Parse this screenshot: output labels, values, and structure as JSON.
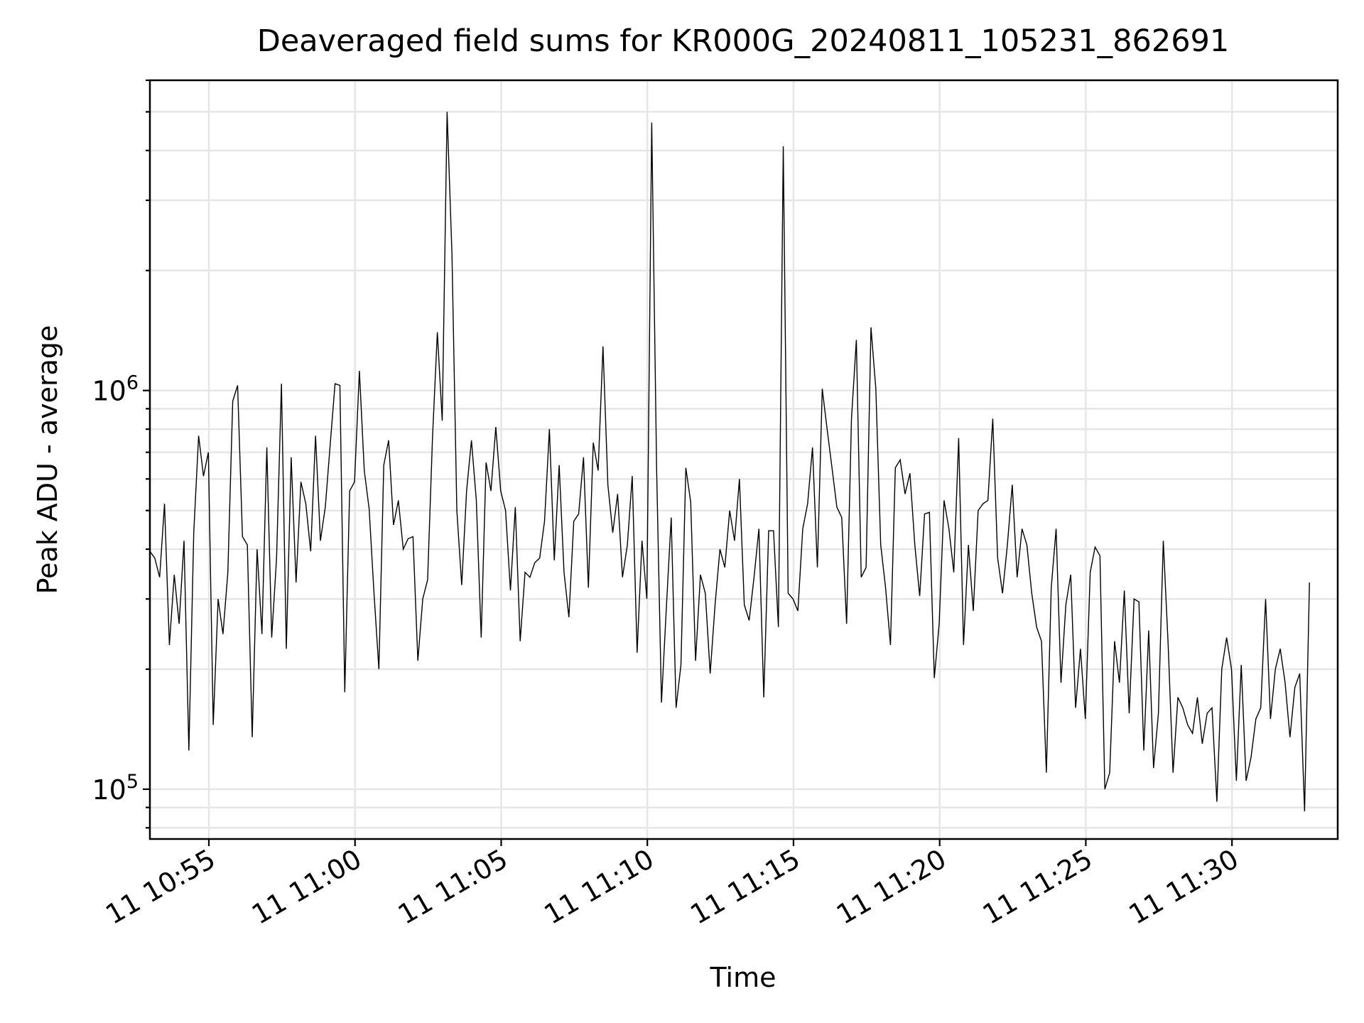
{
  "chart_data": {
    "type": "line",
    "title": "Deaveraged field sums for KR000G_20240811_105231_862691",
    "xlabel": "Time",
    "ylabel": "Peak ADU - average",
    "yscale": "log",
    "grid": true,
    "ylim": [
      75000,
      6000000
    ],
    "xlim": [
      "2024-08-11 10:52:59",
      "2024-08-11 11:33:37"
    ],
    "x_start": "2024-08-11 10:52:59",
    "x_step_seconds": 10,
    "xticks": [
      {
        "time": "2024-08-11 10:55:00",
        "label": "11 10:55"
      },
      {
        "time": "2024-08-11 11:00:00",
        "label": "11 11:00"
      },
      {
        "time": "2024-08-11 11:05:00",
        "label": "11 11:05"
      },
      {
        "time": "2024-08-11 11:10:00",
        "label": "11 11:10"
      },
      {
        "time": "2024-08-11 11:15:00",
        "label": "11 11:15"
      },
      {
        "time": "2024-08-11 11:20:00",
        "label": "11 11:20"
      },
      {
        "time": "2024-08-11 11:25:00",
        "label": "11 11:25"
      },
      {
        "time": "2024-08-11 11:30:00",
        "label": "11 11:30"
      }
    ],
    "yticks": [
      {
        "value": 100000,
        "base": "10",
        "exp": "5"
      },
      {
        "value": 1000000,
        "base": "10",
        "exp": "6"
      }
    ],
    "series": [
      {
        "color": "#000000",
        "values": [
          395000,
          380000,
          340000,
          520000,
          230000,
          345000,
          260000,
          420000,
          125000,
          440000,
          770000,
          610000,
          700000,
          145000,
          300000,
          245000,
          350000,
          940000,
          1030000,
          430000,
          410000,
          135000,
          400000,
          245000,
          720000,
          240000,
          380000,
          1040000,
          225000,
          680000,
          330000,
          590000,
          520000,
          395000,
          770000,
          420000,
          510000,
          730000,
          1040000,
          1030000,
          175000,
          560000,
          590000,
          1120000,
          630000,
          505000,
          310000,
          200000,
          650000,
          750000,
          460000,
          530000,
          400000,
          425000,
          430000,
          210000,
          300000,
          335000,
          760000,
          1400000,
          840000,
          5000000,
          2200000,
          500000,
          325000,
          560000,
          750000,
          530000,
          240000,
          660000,
          560000,
          810000,
          560000,
          500000,
          315000,
          510000,
          235000,
          350000,
          340000,
          370000,
          380000,
          470000,
          800000,
          375000,
          650000,
          350000,
          270000,
          470000,
          490000,
          680000,
          320000,
          740000,
          630000,
          1290000,
          580000,
          440000,
          550000,
          340000,
          410000,
          610000,
          220000,
          420000,
          300000,
          4700000,
          640000,
          165000,
          285000,
          480000,
          160000,
          205000,
          640000,
          525000,
          210000,
          345000,
          310000,
          195000,
          290000,
          400000,
          360000,
          500000,
          420000,
          600000,
          290000,
          265000,
          340000,
          450000,
          170000,
          445000,
          445000,
          255000,
          4100000,
          310000,
          300000,
          280000,
          450000,
          520000,
          720000,
          360000,
          1010000,
          800000,
          640000,
          510000,
          480000,
          260000,
          850000,
          1340000,
          340000,
          360000,
          1440000,
          1010000,
          410000,
          320000,
          230000,
          640000,
          670000,
          550000,
          620000,
          410000,
          305000,
          490000,
          495000,
          190000,
          260000,
          530000,
          450000,
          350000,
          760000,
          230000,
          410000,
          280000,
          500000,
          520000,
          530000,
          850000,
          380000,
          310000,
          410000,
          580000,
          340000,
          450000,
          410000,
          310000,
          255000,
          235000,
          110000,
          320000,
          450000,
          185000,
          290000,
          345000,
          160000,
          225000,
          150000,
          350000,
          405000,
          385000,
          100000,
          110000,
          235000,
          185000,
          315000,
          155000,
          300000,
          295000,
          125000,
          250000,
          113000,
          155000,
          420000,
          230000,
          110000,
          170000,
          160000,
          145000,
          138000,
          170000,
          130000,
          155000,
          160000,
          93000,
          200000,
          240000,
          200000,
          105000,
          205000,
          105000,
          120000,
          150000,
          160000,
          300000,
          150000,
          200000,
          225000,
          185000,
          135000,
          180000,
          195000,
          88000,
          330000
        ]
      }
    ]
  }
}
